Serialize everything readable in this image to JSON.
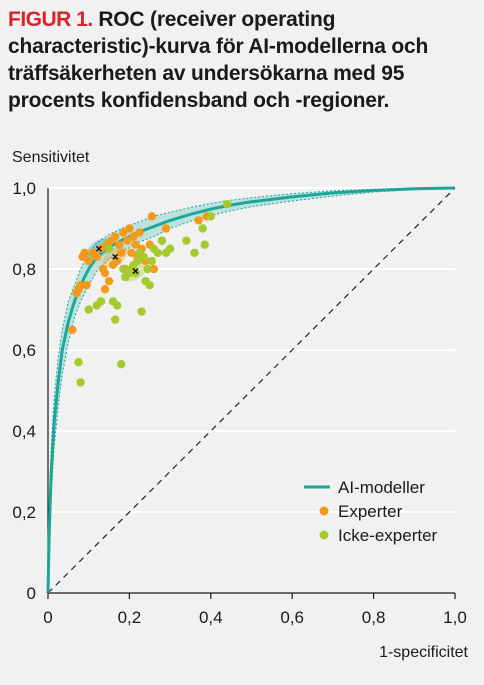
{
  "title": {
    "prefix": "FIGUR 1.",
    "text": "ROC (receiver operating characteristic)-kurva för AI-modellerna och träffsäkerheten av undersökarna med 95 procents konfidensband och -regioner."
  },
  "colors": {
    "background": "#f1f1f1",
    "title_accent": "#d8232a",
    "ai_curve": "#1aa79a",
    "ai_band": "#7fd0c6",
    "experter": "#f39a1a",
    "icke_experter": "#a6c92d",
    "grid": "#ffffff"
  },
  "chart_data": {
    "type": "line",
    "xlabel": "1-specificitet",
    "ylabel": "Sensitivitet",
    "xlim": [
      0,
      1
    ],
    "ylim": [
      0,
      1
    ],
    "xticks": [
      "0",
      "0,2",
      "0,4",
      "0,6",
      "0,8",
      "1,0"
    ],
    "yticks": [
      "0",
      "0,2",
      "0,4",
      "0,6",
      "0,8",
      "1,0"
    ],
    "grid": true,
    "legend_position": "bottom-right",
    "legend": [
      "AI-modeller",
      "Experter",
      "Icke-experter"
    ],
    "diagonal_reference": true,
    "ai_curve": {
      "name": "AI-modeller",
      "x": [
        0,
        0.003,
        0.008,
        0.015,
        0.025,
        0.035,
        0.05,
        0.065,
        0.08,
        0.1,
        0.12,
        0.15,
        0.18,
        0.22,
        0.26,
        0.3,
        0.35,
        0.4,
        0.45,
        0.5,
        0.6,
        0.7,
        0.8,
        0.9,
        1.0
      ],
      "y": [
        0,
        0.15,
        0.3,
        0.42,
        0.52,
        0.6,
        0.67,
        0.72,
        0.76,
        0.8,
        0.83,
        0.855,
        0.87,
        0.89,
        0.905,
        0.92,
        0.935,
        0.948,
        0.958,
        0.966,
        0.978,
        0.988,
        0.994,
        0.998,
        1.0
      ],
      "band_upper": [
        0,
        0.2,
        0.36,
        0.48,
        0.58,
        0.65,
        0.72,
        0.76,
        0.8,
        0.84,
        0.865,
        0.885,
        0.9,
        0.915,
        0.93,
        0.94,
        0.952,
        0.962,
        0.97,
        0.976,
        0.986,
        0.993,
        0.997,
        0.999,
        1.0
      ],
      "band_lower": [
        0,
        0.1,
        0.24,
        0.36,
        0.46,
        0.54,
        0.62,
        0.68,
        0.72,
        0.76,
        0.795,
        0.825,
        0.84,
        0.865,
        0.88,
        0.9,
        0.918,
        0.932,
        0.944,
        0.954,
        0.968,
        0.98,
        0.99,
        0.996,
        1.0
      ]
    },
    "experter": {
      "name": "Experter",
      "points": [
        [
          0.06,
          0.65
        ],
        [
          0.07,
          0.74
        ],
        [
          0.075,
          0.75
        ],
        [
          0.08,
          0.76
        ],
        [
          0.085,
          0.83
        ],
        [
          0.09,
          0.84
        ],
        [
          0.095,
          0.76
        ],
        [
          0.1,
          0.82
        ],
        [
          0.11,
          0.84
        ],
        [
          0.12,
          0.83
        ],
        [
          0.13,
          0.85
        ],
        [
          0.13,
          0.72
        ],
        [
          0.135,
          0.8
        ],
        [
          0.14,
          0.79
        ],
        [
          0.14,
          0.75
        ],
        [
          0.145,
          0.86
        ],
        [
          0.15,
          0.77
        ],
        [
          0.155,
          0.87
        ],
        [
          0.16,
          0.81
        ],
        [
          0.165,
          0.88
        ],
        [
          0.17,
          0.82
        ],
        [
          0.175,
          0.86
        ],
        [
          0.18,
          0.84
        ],
        [
          0.185,
          0.89
        ],
        [
          0.19,
          0.8
        ],
        [
          0.195,
          0.87
        ],
        [
          0.2,
          0.9
        ],
        [
          0.205,
          0.84
        ],
        [
          0.21,
          0.88
        ],
        [
          0.215,
          0.86
        ],
        [
          0.22,
          0.83
        ],
        [
          0.225,
          0.89
        ],
        [
          0.23,
          0.85
        ],
        [
          0.24,
          0.82
        ],
        [
          0.25,
          0.86
        ],
        [
          0.255,
          0.93
        ],
        [
          0.26,
          0.8
        ],
        [
          0.28,
          0.87
        ],
        [
          0.29,
          0.9
        ],
        [
          0.37,
          0.92
        ],
        [
          0.39,
          0.93
        ]
      ]
    },
    "icke_experter": {
      "name": "Icke-experter",
      "points": [
        [
          0.075,
          0.57
        ],
        [
          0.08,
          0.52
        ],
        [
          0.1,
          0.7
        ],
        [
          0.12,
          0.71
        ],
        [
          0.13,
          0.72
        ],
        [
          0.15,
          0.85
        ],
        [
          0.16,
          0.72
        ],
        [
          0.165,
          0.675
        ],
        [
          0.17,
          0.71
        ],
        [
          0.18,
          0.565
        ],
        [
          0.185,
          0.8
        ],
        [
          0.19,
          0.78
        ],
        [
          0.2,
          0.79
        ],
        [
          0.205,
          0.8
        ],
        [
          0.21,
          0.81
        ],
        [
          0.215,
          0.79
        ],
        [
          0.22,
          0.82
        ],
        [
          0.225,
          0.84
        ],
        [
          0.23,
          0.695
        ],
        [
          0.235,
          0.83
        ],
        [
          0.24,
          0.77
        ],
        [
          0.245,
          0.8
        ],
        [
          0.25,
          0.76
        ],
        [
          0.255,
          0.82
        ],
        [
          0.26,
          0.85
        ],
        [
          0.27,
          0.84
        ],
        [
          0.28,
          0.87
        ],
        [
          0.29,
          0.84
        ],
        [
          0.3,
          0.85
        ],
        [
          0.34,
          0.87
        ],
        [
          0.36,
          0.84
        ],
        [
          0.38,
          0.9
        ],
        [
          0.385,
          0.86
        ],
        [
          0.4,
          0.93
        ],
        [
          0.44,
          0.96
        ]
      ]
    },
    "summary_points": [
      {
        "series": "AI-modeller",
        "x": 0.125,
        "y": 0.85
      },
      {
        "series": "Experter",
        "x": 0.165,
        "y": 0.83
      },
      {
        "series": "Icke-experter",
        "x": 0.215,
        "y": 0.795
      }
    ]
  }
}
